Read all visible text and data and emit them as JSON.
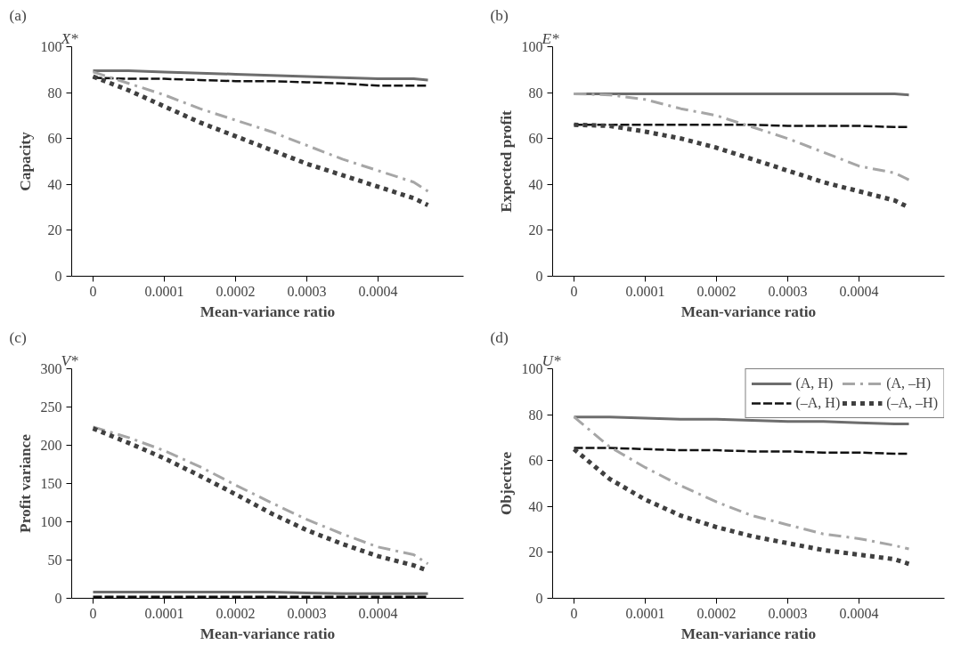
{
  "chart_data": [
    {
      "type": "line",
      "title": "(a)",
      "annotations": [
        "X*"
      ],
      "xlabel": "Mean-variance ratio",
      "ylabel": "Capacity",
      "x": [
        0,
        5e-05,
        0.0001,
        0.00015,
        0.0002,
        0.00025,
        0.0003,
        0.00035,
        0.0004,
        0.00045,
        0.00047
      ],
      "xlim": [
        -3e-05,
        0.00052
      ],
      "xticks": [
        0,
        0.0001,
        0.0002,
        0.0003,
        0.0004
      ],
      "ylim": [
        0,
        100
      ],
      "yticks": [
        0,
        20,
        40,
        60,
        80,
        100
      ],
      "grid": false,
      "legend": false,
      "series": [
        {
          "color": "#6d6d6d",
          "line_style": "solid",
          "values": [
            89.5,
            89.5,
            89,
            88.5,
            88,
            87.5,
            87,
            86.5,
            86,
            86,
            85.5
          ]
        },
        {
          "color": "#111111",
          "line_style": "dashed",
          "values": [
            86.5,
            86,
            86,
            85.5,
            85,
            85,
            84.5,
            84,
            83,
            83,
            83
          ]
        },
        {
          "color": "#a6a6a6",
          "line_style": "dashdot",
          "values": [
            89,
            84,
            79,
            73,
            68,
            63,
            57,
            51,
            46,
            41,
            37
          ]
        },
        {
          "color": "#404040",
          "line_style": "dotted",
          "values": [
            87,
            81,
            74,
            67,
            61,
            55,
            49,
            44,
            39,
            34,
            31
          ]
        }
      ]
    },
    {
      "type": "line",
      "title": "(b)",
      "annotations": [
        "E*"
      ],
      "xlabel": "Mean-variance ratio",
      "ylabel": "Expected profit",
      "x": [
        0,
        5e-05,
        0.0001,
        0.00015,
        0.0002,
        0.00025,
        0.0003,
        0.00035,
        0.0004,
        0.00045,
        0.00047
      ],
      "xlim": [
        -3e-05,
        0.00052
      ],
      "xticks": [
        0,
        0.0001,
        0.0002,
        0.0003,
        0.0004
      ],
      "ylim": [
        0,
        100
      ],
      "yticks": [
        0,
        20,
        40,
        60,
        80,
        100
      ],
      "grid": false,
      "legend": false,
      "series": [
        {
          "color": "#6d6d6d",
          "line_style": "solid",
          "values": [
            79.5,
            79.5,
            79.5,
            79.5,
            79.5,
            79.5,
            79.5,
            79.5,
            79.5,
            79.5,
            79
          ]
        },
        {
          "color": "#111111",
          "line_style": "dashed",
          "values": [
            66,
            66,
            66,
            66,
            66,
            66,
            65.5,
            65.5,
            65.5,
            65,
            65
          ]
        },
        {
          "color": "#a6a6a6",
          "line_style": "dashdot",
          "values": [
            79.5,
            79,
            77,
            73,
            70,
            65,
            60,
            54,
            48,
            45,
            42
          ]
        },
        {
          "color": "#404040",
          "line_style": "dotted",
          "values": [
            66,
            65.5,
            63,
            60,
            56,
            51,
            46,
            41,
            37,
            33,
            30
          ]
        }
      ]
    },
    {
      "type": "line",
      "title": "(c)",
      "annotations": [
        "V*"
      ],
      "xlabel": "Mean-variance ratio",
      "ylabel": "Profit variance",
      "x": [
        0,
        5e-05,
        0.0001,
        0.00015,
        0.0002,
        0.00025,
        0.0003,
        0.00035,
        0.0004,
        0.00045,
        0.00047
      ],
      "xlim": [
        -3e-05,
        0.00052
      ],
      "xticks": [
        0,
        0.0001,
        0.0002,
        0.0003,
        0.0004
      ],
      "ylim": [
        0,
        300
      ],
      "yticks": [
        0,
        50,
        100,
        150,
        200,
        250,
        300
      ],
      "grid": false,
      "legend": false,
      "series": [
        {
          "color": "#6d6d6d",
          "line_style": "solid",
          "values": [
            8,
            8,
            8,
            8,
            8,
            8,
            7,
            6,
            6,
            6,
            6
          ]
        },
        {
          "color": "#111111",
          "line_style": "dashed",
          "values": [
            2,
            2,
            2,
            2,
            2,
            2,
            2,
            2,
            2,
            2,
            2
          ]
        },
        {
          "color": "#a6a6a6",
          "line_style": "dashdot",
          "values": [
            224,
            210,
            193,
            172,
            148,
            125,
            103,
            84,
            67,
            57,
            45
          ]
        },
        {
          "color": "#404040",
          "line_style": "dotted",
          "values": [
            222,
            203,
            183,
            160,
            136,
            111,
            89,
            71,
            55,
            43,
            36
          ]
        }
      ]
    },
    {
      "type": "line",
      "title": "(d)",
      "annotations": [
        "U*"
      ],
      "xlabel": "Mean-variance ratio",
      "ylabel": "Objective",
      "x": [
        0,
        5e-05,
        0.0001,
        0.00015,
        0.0002,
        0.00025,
        0.0003,
        0.00035,
        0.0004,
        0.00045,
        0.00047
      ],
      "xlim": [
        -3e-05,
        0.00052
      ],
      "xticks": [
        0,
        0.0001,
        0.0002,
        0.0003,
        0.0004
      ],
      "ylim": [
        0,
        100
      ],
      "yticks": [
        0,
        20,
        40,
        60,
        80,
        100
      ],
      "grid": false,
      "legend": "top right",
      "series": [
        {
          "name": "(A, H)",
          "color": "#6d6d6d",
          "line_style": "solid",
          "values": [
            79,
            79,
            78.5,
            78,
            78,
            77.5,
            77,
            77,
            76.5,
            76,
            76
          ]
        },
        {
          "name": "(–A, H)",
          "color": "#111111",
          "line_style": "dashed",
          "values": [
            65.5,
            65.5,
            65,
            64.5,
            64.5,
            64,
            64,
            63.5,
            63.5,
            63,
            63
          ]
        },
        {
          "name": "(A, –H)",
          "color": "#a6a6a6",
          "line_style": "dashdot",
          "values": [
            79,
            66,
            57,
            49,
            42,
            36,
            32,
            28,
            26,
            23,
            21.5
          ]
        },
        {
          "name": "(–A, –H)",
          "color": "#404040",
          "line_style": "dotted",
          "values": [
            65,
            52,
            43,
            36,
            31,
            27,
            24,
            21,
            19,
            17,
            15
          ]
        }
      ]
    }
  ]
}
